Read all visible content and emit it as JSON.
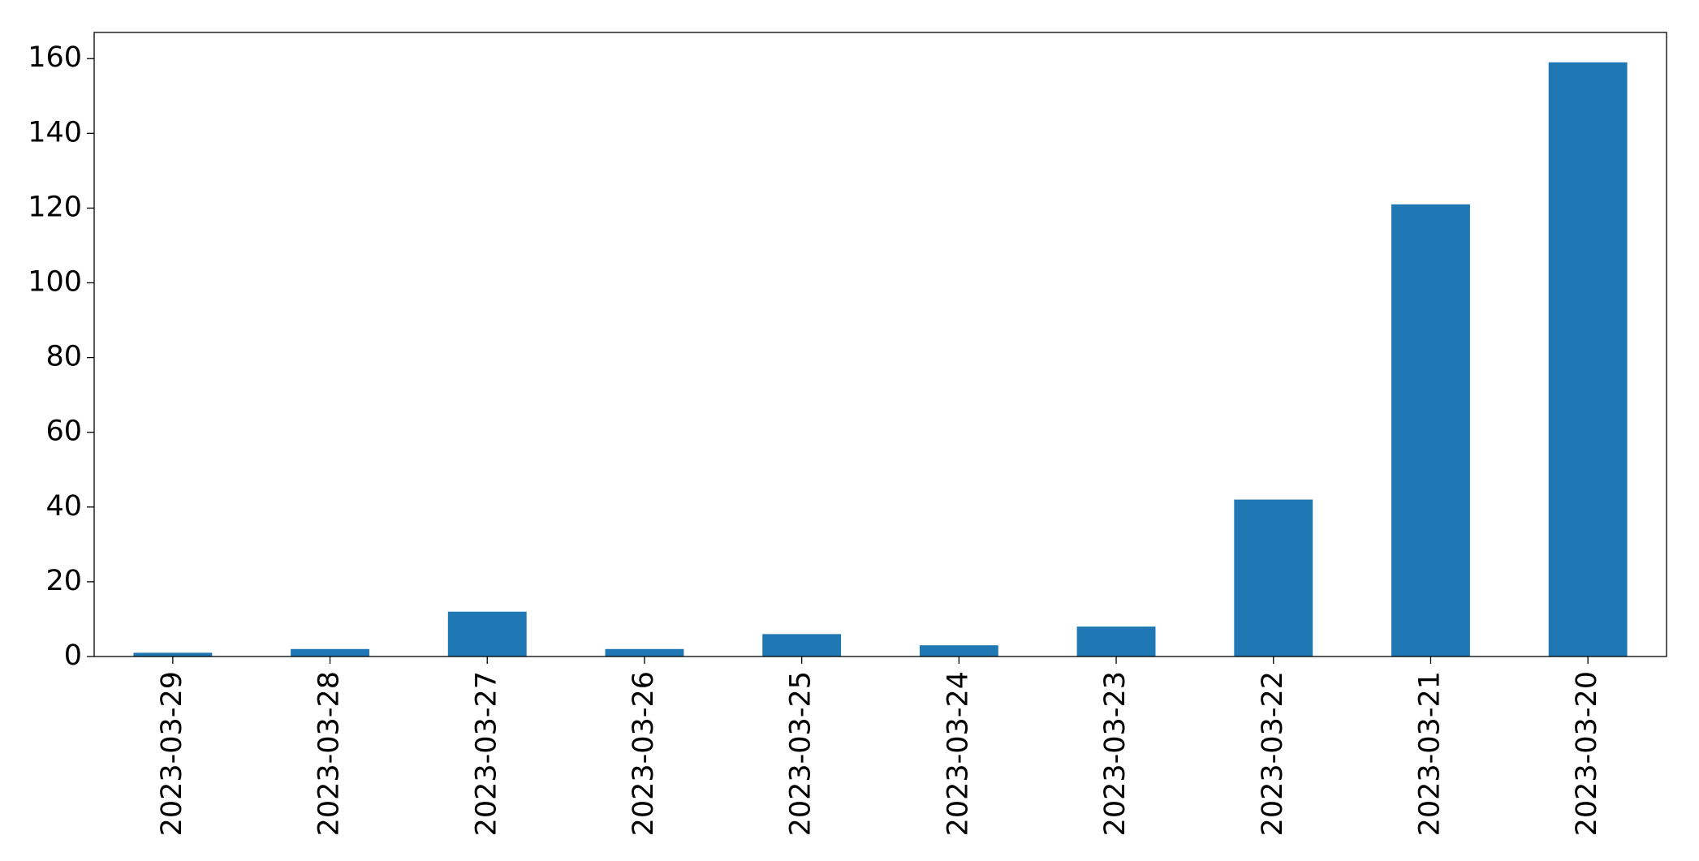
{
  "chart_data": {
    "type": "bar",
    "categories": [
      "2023-03-29",
      "2023-03-28",
      "2023-03-27",
      "2023-03-26",
      "2023-03-25",
      "2023-03-24",
      "2023-03-23",
      "2023-03-22",
      "2023-03-21",
      "2023-03-20"
    ],
    "values": [
      1,
      2,
      12,
      2,
      6,
      3,
      8,
      42,
      121,
      159
    ],
    "color": "#1f77b4",
    "ylim": [
      0,
      167
    ],
    "yticks": [
      0,
      20,
      40,
      60,
      80,
      100,
      120,
      140,
      160
    ],
    "grid": false
  }
}
